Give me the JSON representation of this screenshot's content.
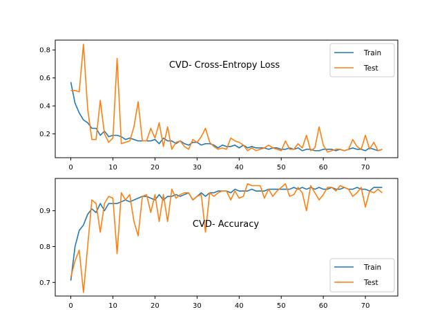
{
  "colors": {
    "train": "#1f77b4",
    "test": "#ff7f0e"
  },
  "chart_data": [
    {
      "type": "line",
      "title": "CVD- Cross-Entropy Loss",
      "xlim": [
        -3.7,
        77.7
      ],
      "ylim": [
        0.03,
        0.87
      ],
      "xticks": [
        0,
        10,
        20,
        30,
        40,
        50,
        60,
        70
      ],
      "yticks": [
        0.2,
        0.4,
        0.6,
        0.8
      ],
      "ytick_labels": [
        "0.2",
        "0.4",
        "0.6",
        "0.8"
      ],
      "legend": "top-right",
      "grid": false,
      "series": [
        {
          "name": "Train",
          "values": [
            0.57,
            0.42,
            0.35,
            0.3,
            0.28,
            0.24,
            0.24,
            0.19,
            0.22,
            0.18,
            0.19,
            0.19,
            0.18,
            0.16,
            0.17,
            0.16,
            0.15,
            0.15,
            0.15,
            0.15,
            0.16,
            0.13,
            0.17,
            0.15,
            0.15,
            0.13,
            0.15,
            0.13,
            0.12,
            0.14,
            0.14,
            0.12,
            0.13,
            0.13,
            0.12,
            0.1,
            0.12,
            0.11,
            0.11,
            0.12,
            0.1,
            0.12,
            0.1,
            0.11,
            0.1,
            0.1,
            0.1,
            0.09,
            0.1,
            0.1,
            0.09,
            0.09,
            0.1,
            0.09,
            0.1,
            0.08,
            0.09,
            0.09,
            0.08,
            0.08,
            0.09,
            0.09,
            0.09,
            0.08,
            0.09,
            0.08,
            0.09,
            0.1,
            0.09,
            0.09,
            0.08,
            0.1,
            0.09,
            0.08,
            0.09
          ]
        },
        {
          "name": "Test",
          "values": [
            0.51,
            0.51,
            0.5,
            0.84,
            0.38,
            0.16,
            0.16,
            0.44,
            0.2,
            0.14,
            0.17,
            0.74,
            0.13,
            0.14,
            0.15,
            0.25,
            0.43,
            0.15,
            0.15,
            0.24,
            0.17,
            0.28,
            0.11,
            0.25,
            0.09,
            0.14,
            0.15,
            0.11,
            0.09,
            0.16,
            0.14,
            0.18,
            0.24,
            0.14,
            0.11,
            0.09,
            0.1,
            0.09,
            0.17,
            0.15,
            0.14,
            0.12,
            0.08,
            0.1,
            0.08,
            0.09,
            0.1,
            0.12,
            0.1,
            0.09,
            0.08,
            0.15,
            0.09,
            0.09,
            0.13,
            0.1,
            0.19,
            0.08,
            0.1,
            0.25,
            0.12,
            0.07,
            0.08,
            0.09,
            0.09,
            0.08,
            0.09,
            0.16,
            0.11,
            0.09,
            0.19,
            0.09,
            0.14,
            0.08,
            0.09
          ]
        }
      ]
    },
    {
      "type": "line",
      "title": "CVD- Accuracy",
      "xlim": [
        -3.7,
        77.7
      ],
      "ylim": [
        0.662,
        0.99
      ],
      "xticks": [
        0,
        10,
        20,
        30,
        40,
        50,
        60,
        70
      ],
      "yticks": [
        0.7,
        0.8,
        0.9
      ],
      "ytick_labels": [
        "0.7",
        "0.8",
        "0.9"
      ],
      "legend": "bottom-right",
      "grid": false,
      "series": [
        {
          "name": "Train",
          "values": [
            0.705,
            0.8,
            0.845,
            0.86,
            0.89,
            0.905,
            0.895,
            0.92,
            0.9,
            0.92,
            0.92,
            0.92,
            0.925,
            0.93,
            0.925,
            0.93,
            0.935,
            0.94,
            0.94,
            0.935,
            0.93,
            0.945,
            0.93,
            0.94,
            0.94,
            0.945,
            0.94,
            0.945,
            0.95,
            0.93,
            0.94,
            0.95,
            0.94,
            0.95,
            0.95,
            0.955,
            0.955,
            0.955,
            0.95,
            0.96,
            0.955,
            0.955,
            0.955,
            0.96,
            0.955,
            0.955,
            0.955,
            0.96,
            0.96,
            0.96,
            0.96,
            0.96,
            0.96,
            0.965,
            0.96,
            0.965,
            0.96,
            0.965,
            0.96,
            0.965,
            0.96,
            0.96,
            0.965,
            0.96,
            0.96,
            0.965,
            0.96,
            0.96,
            0.965,
            0.96,
            0.96,
            0.955,
            0.965,
            0.965,
            0.965
          ]
        },
        {
          "name": "Test",
          "values": [
            0.715,
            0.76,
            0.79,
            0.672,
            0.8,
            0.93,
            0.92,
            0.84,
            0.92,
            0.94,
            0.935,
            0.78,
            0.95,
            0.93,
            0.945,
            0.87,
            0.83,
            0.94,
            0.945,
            0.895,
            0.945,
            0.87,
            0.945,
            0.87,
            0.96,
            0.935,
            0.945,
            0.95,
            0.95,
            0.93,
            0.94,
            0.945,
            0.84,
            0.95,
            0.94,
            0.95,
            0.955,
            0.955,
            0.93,
            0.955,
            0.935,
            0.94,
            0.975,
            0.97,
            0.97,
            0.97,
            0.935,
            0.96,
            0.94,
            0.955,
            0.965,
            0.975,
            0.94,
            0.945,
            0.965,
            0.95,
            0.9,
            0.97,
            0.95,
            0.93,
            0.945,
            0.965,
            0.965,
            0.955,
            0.97,
            0.965,
            0.96,
            0.94,
            0.95,
            0.965,
            0.91,
            0.955,
            0.95,
            0.96,
            0.95
          ]
        }
      ]
    }
  ]
}
